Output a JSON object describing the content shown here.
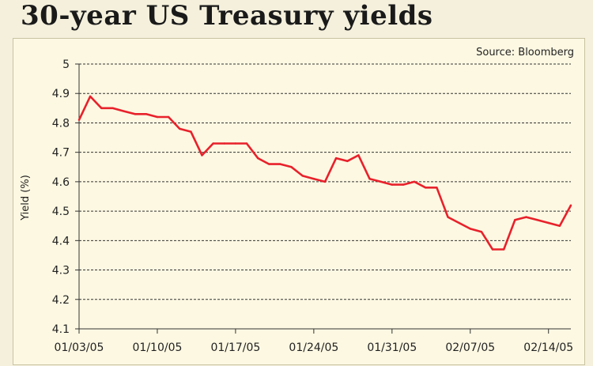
{
  "title": "30-year US Treasury yields",
  "source": "Source: Bloomberg",
  "colors": {
    "line": "#e8212b",
    "background": "#f4f0dc",
    "panel": "#fdf8e2",
    "grid": "#333333"
  },
  "chart_data": {
    "type": "line",
    "title": "30-year US Treasury yields",
    "ylabel": "Yield (%)",
    "xlabel": "",
    "ylim": [
      4.1,
      5
    ],
    "yticks": [
      "5",
      "4.9",
      "4.8",
      "4.7",
      "4.6",
      "4.5",
      "4.4",
      "4.3",
      "4.2",
      "4.1"
    ],
    "xticks": [
      "01/03/05",
      "01/10/05",
      "01/17/05",
      "01/24/05",
      "01/31/05",
      "02/07/05",
      "02/14/05"
    ],
    "xlim_days": [
      0,
      44
    ],
    "grid": "horizontal-dashed",
    "series": [
      {
        "x": [
          0,
          1,
          2,
          3,
          4,
          5,
          6,
          7,
          8,
          9,
          10,
          11,
          12,
          13,
          14,
          15,
          16,
          17,
          18,
          19,
          20,
          21,
          22,
          23,
          24,
          25,
          26,
          27,
          28,
          29,
          30,
          31,
          32,
          33,
          34,
          35,
          36,
          37,
          38,
          39,
          40,
          41,
          42,
          43,
          44
        ],
        "values": [
          4.81,
          4.89,
          4.85,
          4.85,
          4.84,
          4.83,
          4.83,
          4.82,
          4.82,
          4.78,
          4.77,
          4.69,
          4.73,
          4.73,
          4.73,
          4.73,
          4.68,
          4.66,
          4.66,
          4.65,
          4.62,
          4.61,
          4.6,
          4.68,
          4.67,
          4.69,
          4.61,
          4.6,
          4.59,
          4.59,
          4.6,
          4.58,
          4.58,
          4.48,
          4.46,
          4.44,
          4.43,
          4.37,
          4.37,
          4.47,
          4.48,
          4.47,
          4.46,
          4.45,
          4.52
        ]
      }
    ]
  }
}
